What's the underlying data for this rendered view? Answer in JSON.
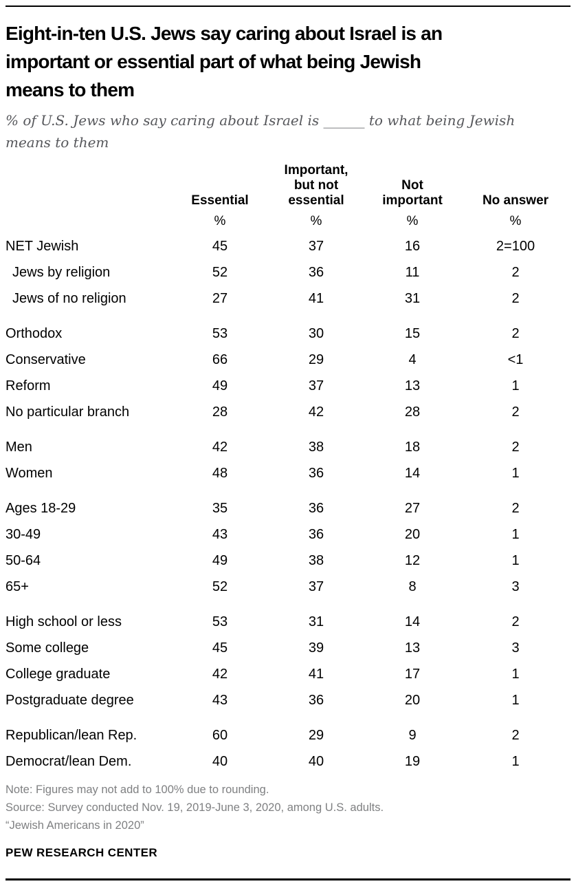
{
  "colors": {
    "rule": "#000000",
    "title_text": "#000000",
    "subtitle_text": "#56575b",
    "table_text": "#000000",
    "note_text": "#7f8082",
    "background": "#ffffff"
  },
  "header": {
    "title": "Eight-in-ten U.S. Jews say caring about Israel is an\nimportant or essential part of what being Jewish\nmeans to them",
    "subtitle": "% of U.S. Jews who say caring about Israel is ______ to what being Jewish\nmeans to them"
  },
  "chart_data": {
    "type": "table",
    "title": "Eight-in-ten U.S. Jews say caring about Israel is an important or essential part of what being Jewish means to them",
    "subtitle": "% of U.S. Jews who say caring about Israel is ______ to what being Jewish means to them",
    "columns": [
      "Essential",
      "Important,\nbut not\nessential",
      "Not\nimportant",
      "No answer"
    ],
    "columns_flat": [
      "Essential",
      "Important, but not essential",
      "Not important",
      "No answer"
    ],
    "unit_row": [
      "%",
      "%",
      "%",
      "%"
    ],
    "groups": [
      {
        "rows": [
          {
            "label": "NET Jewish",
            "indent": false,
            "values": [
              "45",
              "37",
              "16",
              "2=100"
            ]
          },
          {
            "label": "Jews by religion",
            "indent": true,
            "values": [
              "52",
              "36",
              "11",
              "2"
            ]
          },
          {
            "label": "Jews of no religion",
            "indent": true,
            "values": [
              "27",
              "41",
              "31",
              "2"
            ]
          }
        ]
      },
      {
        "rows": [
          {
            "label": "Orthodox",
            "indent": false,
            "values": [
              "53",
              "30",
              "15",
              "2"
            ]
          },
          {
            "label": "Conservative",
            "indent": false,
            "values": [
              "66",
              "29",
              "4",
              "<1"
            ]
          },
          {
            "label": "Reform",
            "indent": false,
            "values": [
              "49",
              "37",
              "13",
              "1"
            ]
          },
          {
            "label": "No particular branch",
            "indent": false,
            "values": [
              "28",
              "42",
              "28",
              "2"
            ]
          }
        ]
      },
      {
        "rows": [
          {
            "label": "Men",
            "indent": false,
            "values": [
              "42",
              "38",
              "18",
              "2"
            ]
          },
          {
            "label": "Women",
            "indent": false,
            "values": [
              "48",
              "36",
              "14",
              "1"
            ]
          }
        ]
      },
      {
        "rows": [
          {
            "label": "Ages 18-29",
            "indent": false,
            "values": [
              "35",
              "36",
              "27",
              "2"
            ]
          },
          {
            "label": "30-49",
            "indent": false,
            "values": [
              "43",
              "36",
              "20",
              "1"
            ]
          },
          {
            "label": "50-64",
            "indent": false,
            "values": [
              "49",
              "38",
              "12",
              "1"
            ]
          },
          {
            "label": "65+",
            "indent": false,
            "values": [
              "52",
              "37",
              "8",
              "3"
            ]
          }
        ]
      },
      {
        "rows": [
          {
            "label": "High school or less",
            "indent": false,
            "values": [
              "53",
              "31",
              "14",
              "2"
            ]
          },
          {
            "label": "Some college",
            "indent": false,
            "values": [
              "45",
              "39",
              "13",
              "3"
            ]
          },
          {
            "label": "College graduate",
            "indent": false,
            "values": [
              "42",
              "41",
              "17",
              "1"
            ]
          },
          {
            "label": "Postgraduate degree",
            "indent": false,
            "values": [
              "43",
              "36",
              "20",
              "1"
            ]
          }
        ]
      },
      {
        "rows": [
          {
            "label": "Republican/lean Rep.",
            "indent": false,
            "values": [
              "60",
              "29",
              "9",
              "2"
            ]
          },
          {
            "label": "Democrat/lean Dem.",
            "indent": false,
            "values": [
              "40",
              "40",
              "19",
              "1"
            ]
          }
        ]
      }
    ]
  },
  "footer": {
    "notes": "Note: Figures may not add to 100% due to rounding.\nSource: Survey conducted Nov. 19, 2019-June 3, 2020, among U.S. adults.\n“Jewish Americans in 2020”",
    "brand": "PEW RESEARCH CENTER"
  }
}
